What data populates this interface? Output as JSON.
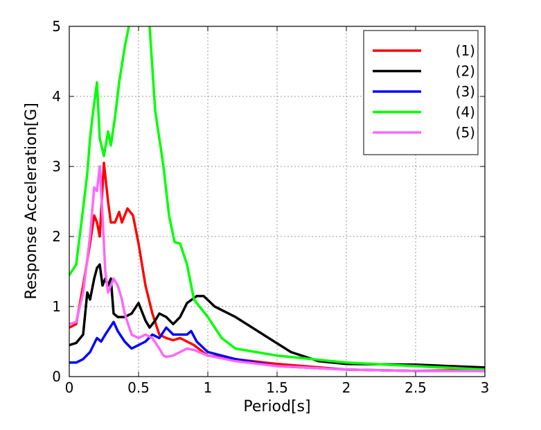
{
  "chart_data": {
    "type": "line",
    "title": "",
    "xlabel": "Period[s]",
    "ylabel": "Response Acceleration[G]",
    "xlim": [
      0,
      3
    ],
    "ylim": [
      0,
      5
    ],
    "grid": true,
    "legend_position": "top-right",
    "x_ticks": [
      "0",
      "0.5",
      "1",
      "1.5",
      "2",
      "2.5",
      "3"
    ],
    "y_ticks": [
      "0",
      "1",
      "2",
      "3",
      "4",
      "5"
    ],
    "series": [
      {
        "name": "(1)",
        "color": "#ff0000",
        "points": [
          [
            0,
            0.7
          ],
          [
            0.05,
            0.75
          ],
          [
            0.1,
            1.3
          ],
          [
            0.15,
            1.9
          ],
          [
            0.18,
            2.3
          ],
          [
            0.2,
            2.2
          ],
          [
            0.22,
            2.0
          ],
          [
            0.25,
            3.05
          ],
          [
            0.28,
            2.5
          ],
          [
            0.3,
            2.2
          ],
          [
            0.33,
            2.2
          ],
          [
            0.36,
            2.35
          ],
          [
            0.38,
            2.2
          ],
          [
            0.42,
            2.4
          ],
          [
            0.46,
            2.3
          ],
          [
            0.5,
            1.9
          ],
          [
            0.55,
            1.3
          ],
          [
            0.6,
            0.9
          ],
          [
            0.65,
            0.6
          ],
          [
            0.7,
            0.55
          ],
          [
            0.75,
            0.52
          ],
          [
            0.8,
            0.55
          ],
          [
            0.85,
            0.5
          ],
          [
            0.9,
            0.45
          ],
          [
            1.0,
            0.3
          ],
          [
            1.2,
            0.25
          ],
          [
            1.5,
            0.18
          ],
          [
            2.0,
            0.1
          ],
          [
            2.5,
            0.08
          ],
          [
            3.0,
            0.1
          ]
        ]
      },
      {
        "name": "(2)",
        "color": "#000000",
        "points": [
          [
            0,
            0.45
          ],
          [
            0.05,
            0.48
          ],
          [
            0.1,
            0.6
          ],
          [
            0.13,
            1.2
          ],
          [
            0.15,
            1.1
          ],
          [
            0.18,
            1.4
          ],
          [
            0.2,
            1.55
          ],
          [
            0.22,
            1.6
          ],
          [
            0.24,
            1.3
          ],
          [
            0.26,
            1.4
          ],
          [
            0.28,
            1.3
          ],
          [
            0.3,
            1.4
          ],
          [
            0.32,
            0.9
          ],
          [
            0.35,
            0.85
          ],
          [
            0.4,
            0.85
          ],
          [
            0.45,
            0.9
          ],
          [
            0.5,
            1.05
          ],
          [
            0.55,
            0.8
          ],
          [
            0.58,
            0.7
          ],
          [
            0.62,
            0.8
          ],
          [
            0.65,
            0.9
          ],
          [
            0.7,
            0.85
          ],
          [
            0.75,
            0.75
          ],
          [
            0.8,
            0.85
          ],
          [
            0.85,
            1.05
          ],
          [
            0.92,
            1.15
          ],
          [
            0.97,
            1.15
          ],
          [
            1.05,
            1.0
          ],
          [
            1.2,
            0.85
          ],
          [
            1.4,
            0.6
          ],
          [
            1.6,
            0.35
          ],
          [
            1.8,
            0.22
          ],
          [
            2.0,
            0.18
          ],
          [
            2.5,
            0.17
          ],
          [
            3.0,
            0.13
          ]
        ]
      },
      {
        "name": "(3)",
        "color": "#0000ff",
        "points": [
          [
            0,
            0.2
          ],
          [
            0.05,
            0.2
          ],
          [
            0.1,
            0.25
          ],
          [
            0.15,
            0.35
          ],
          [
            0.2,
            0.55
          ],
          [
            0.23,
            0.5
          ],
          [
            0.26,
            0.6
          ],
          [
            0.3,
            0.72
          ],
          [
            0.32,
            0.78
          ],
          [
            0.35,
            0.65
          ],
          [
            0.4,
            0.5
          ],
          [
            0.45,
            0.4
          ],
          [
            0.5,
            0.45
          ],
          [
            0.55,
            0.5
          ],
          [
            0.6,
            0.6
          ],
          [
            0.65,
            0.55
          ],
          [
            0.7,
            0.7
          ],
          [
            0.75,
            0.6
          ],
          [
            0.8,
            0.6
          ],
          [
            0.85,
            0.6
          ],
          [
            0.88,
            0.65
          ],
          [
            0.92,
            0.5
          ],
          [
            1.0,
            0.35
          ],
          [
            1.2,
            0.25
          ],
          [
            1.5,
            0.15
          ],
          [
            2.0,
            0.1
          ],
          [
            2.5,
            0.08
          ],
          [
            3.0,
            0.08
          ]
        ]
      },
      {
        "name": "(4)",
        "color": "#00ff00",
        "points": [
          [
            0,
            1.45
          ],
          [
            0.05,
            1.6
          ],
          [
            0.1,
            2.4
          ],
          [
            0.13,
            2.9
          ],
          [
            0.15,
            3.4
          ],
          [
            0.17,
            3.75
          ],
          [
            0.2,
            4.2
          ],
          [
            0.22,
            3.4
          ],
          [
            0.25,
            3.15
          ],
          [
            0.28,
            3.5
          ],
          [
            0.3,
            3.3
          ],
          [
            0.33,
            3.7
          ],
          [
            0.36,
            4.2
          ],
          [
            0.4,
            4.7
          ],
          [
            0.43,
            5.0
          ],
          [
            0.47,
            5.2
          ],
          [
            0.5,
            5.2
          ],
          [
            0.55,
            5.2
          ],
          [
            0.58,
            5.0
          ],
          [
            0.62,
            3.8
          ],
          [
            0.68,
            3.0
          ],
          [
            0.72,
            2.3
          ],
          [
            0.76,
            1.92
          ],
          [
            0.8,
            1.9
          ],
          [
            0.85,
            1.6
          ],
          [
            0.9,
            1.1
          ],
          [
            1.0,
            0.85
          ],
          [
            1.1,
            0.55
          ],
          [
            1.2,
            0.4
          ],
          [
            1.5,
            0.3
          ],
          [
            2.0,
            0.2
          ],
          [
            2.5,
            0.15
          ],
          [
            3.0,
            0.1
          ]
        ]
      },
      {
        "name": "(5)",
        "color": "#ff66ff",
        "points": [
          [
            0,
            0.75
          ],
          [
            0.05,
            0.78
          ],
          [
            0.1,
            1.2
          ],
          [
            0.15,
            2.0
          ],
          [
            0.18,
            2.7
          ],
          [
            0.2,
            2.65
          ],
          [
            0.22,
            3.0
          ],
          [
            0.24,
            2.3
          ],
          [
            0.26,
            1.5
          ],
          [
            0.28,
            1.2
          ],
          [
            0.3,
            1.3
          ],
          [
            0.32,
            1.4
          ],
          [
            0.35,
            1.3
          ],
          [
            0.38,
            1.1
          ],
          [
            0.4,
            0.9
          ],
          [
            0.45,
            0.6
          ],
          [
            0.5,
            0.55
          ],
          [
            0.55,
            0.6
          ],
          [
            0.6,
            0.55
          ],
          [
            0.65,
            0.4
          ],
          [
            0.68,
            0.3
          ],
          [
            0.7,
            0.28
          ],
          [
            0.75,
            0.3
          ],
          [
            0.8,
            0.35
          ],
          [
            0.85,
            0.4
          ],
          [
            0.9,
            0.38
          ],
          [
            1.0,
            0.3
          ],
          [
            1.2,
            0.22
          ],
          [
            1.5,
            0.15
          ],
          [
            2.0,
            0.1
          ],
          [
            2.5,
            0.08
          ],
          [
            3.0,
            0.08
          ]
        ]
      }
    ]
  }
}
